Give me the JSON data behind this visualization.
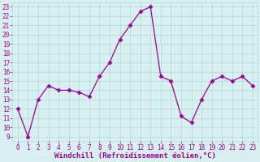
{
  "x": [
    0,
    1,
    2,
    3,
    4,
    5,
    6,
    7,
    8,
    9,
    10,
    11,
    12,
    13,
    14,
    15,
    16,
    17,
    18,
    19,
    20,
    21,
    22,
    23
  ],
  "y": [
    12,
    9,
    13,
    14.5,
    14,
    14,
    13.8,
    13.3,
    15.5,
    17,
    19.5,
    21,
    22.5,
    23,
    15.5,
    15,
    11.2,
    10.5,
    13,
    15,
    15.5,
    15,
    15.5,
    14.5
  ],
  "line_color": "#990099",
  "marker_color": "#990099",
  "bg_color": "#d8f0f0",
  "grid_color": "#b0d8d8",
  "xlabel": "Windchill (Refroidissement éolien,°C)",
  "ylabel_ticks": [
    9,
    10,
    11,
    12,
    13,
    14,
    15,
    16,
    17,
    18,
    19,
    20,
    21,
    22,
    23
  ],
  "xlim": [
    -0.5,
    23.5
  ],
  "ylim": [
    8.5,
    23.5
  ],
  "xticks": [
    0,
    1,
    2,
    3,
    4,
    5,
    6,
    7,
    8,
    9,
    10,
    11,
    12,
    13,
    14,
    15,
    16,
    17,
    18,
    19,
    20,
    21,
    22,
    23
  ],
  "tick_fontsize": 5.5,
  "xlabel_fontsize": 6.5,
  "marker_size": 2.5,
  "line_width": 0.9
}
